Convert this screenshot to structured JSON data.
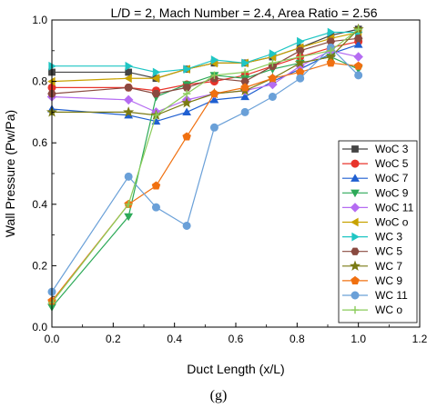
{
  "chart_data": {
    "type": "line",
    "title": "L/D = 2, Mach Number = 2.4, Area Ratio = 2.56",
    "xlabel": "Duct Length (x/L)",
    "ylabel": "Wall Pressure (Pw/Pa)",
    "caption": "(g)",
    "xlim": [
      0.0,
      1.2
    ],
    "ylim": [
      0.0,
      1.0
    ],
    "xticks": [
      "0.0",
      "0.2",
      "0.4",
      "0.6",
      "0.8",
      "1.0",
      "1.2"
    ],
    "yticks": [
      "0.0",
      "0.2",
      "0.4",
      "0.6",
      "0.8",
      "1.0"
    ],
    "grid": false,
    "legend_position": "right",
    "x": [
      0.0,
      0.25,
      0.34,
      0.44,
      0.53,
      0.63,
      0.72,
      0.81,
      0.91,
      1.0
    ],
    "series": [
      {
        "name": "WoC 3",
        "color": "#444444",
        "marker": "square",
        "values": [
          0.83,
          0.83,
          0.81,
          0.84,
          0.86,
          0.86,
          0.88,
          0.91,
          0.95,
          0.97
        ]
      },
      {
        "name": "WoC 5",
        "color": "#e8342b",
        "marker": "circle",
        "values": [
          0.78,
          0.78,
          0.77,
          0.79,
          0.8,
          0.82,
          0.85,
          0.88,
          0.91,
          0.93
        ]
      },
      {
        "name": "WoC 7",
        "color": "#1f5fd1",
        "marker": "triangle-up",
        "values": [
          0.71,
          0.69,
          0.67,
          0.7,
          0.74,
          0.75,
          0.8,
          0.84,
          0.89,
          0.92
        ]
      },
      {
        "name": "WoC 9",
        "color": "#2daa58",
        "marker": "triangle-down",
        "values": [
          0.065,
          0.36,
          0.75,
          0.79,
          0.82,
          0.81,
          0.84,
          0.86,
          0.88,
          0.84
        ]
      },
      {
        "name": "WoC 11",
        "color": "#b56cf2",
        "marker": "diamond",
        "values": [
          0.75,
          0.74,
          0.7,
          0.74,
          0.76,
          0.77,
          0.79,
          0.85,
          0.9,
          0.88
        ]
      },
      {
        "name": "WoC o",
        "color": "#c8a200",
        "marker": "triangle-left",
        "values": [
          0.8,
          0.81,
          0.81,
          0.84,
          0.86,
          0.86,
          0.88,
          0.91,
          0.94,
          0.96
        ]
      },
      {
        "name": "WC 3",
        "color": "#1fc6c4",
        "marker": "triangle-right",
        "values": [
          0.85,
          0.85,
          0.83,
          0.84,
          0.87,
          0.86,
          0.89,
          0.93,
          0.96,
          0.96
        ]
      },
      {
        "name": "WC 5",
        "color": "#8a4a40",
        "marker": "hexagon",
        "values": [
          0.76,
          0.78,
          0.76,
          0.78,
          0.81,
          0.8,
          0.85,
          0.9,
          0.93,
          0.94
        ]
      },
      {
        "name": "WC 7",
        "color": "#7a7a14",
        "marker": "star",
        "values": [
          0.7,
          0.7,
          0.69,
          0.73,
          0.76,
          0.77,
          0.81,
          0.86,
          0.88,
          0.97
        ]
      },
      {
        "name": "WC 9",
        "color": "#f07010",
        "marker": "pentagon",
        "values": [
          0.085,
          0.4,
          0.46,
          0.62,
          0.76,
          0.78,
          0.81,
          0.83,
          0.86,
          0.85
        ]
      },
      {
        "name": "WC 11",
        "color": "#6aa0d8",
        "marker": "circle",
        "values": [
          0.115,
          0.49,
          0.39,
          0.33,
          0.65,
          0.7,
          0.75,
          0.81,
          0.91,
          0.82
        ]
      },
      {
        "name": "WC o",
        "color": "#8acc5a",
        "marker": "plus",
        "values": [
          0.08,
          0.4,
          0.69,
          0.76,
          0.82,
          0.83,
          0.86,
          0.88,
          0.9,
          0.97
        ]
      }
    ]
  }
}
